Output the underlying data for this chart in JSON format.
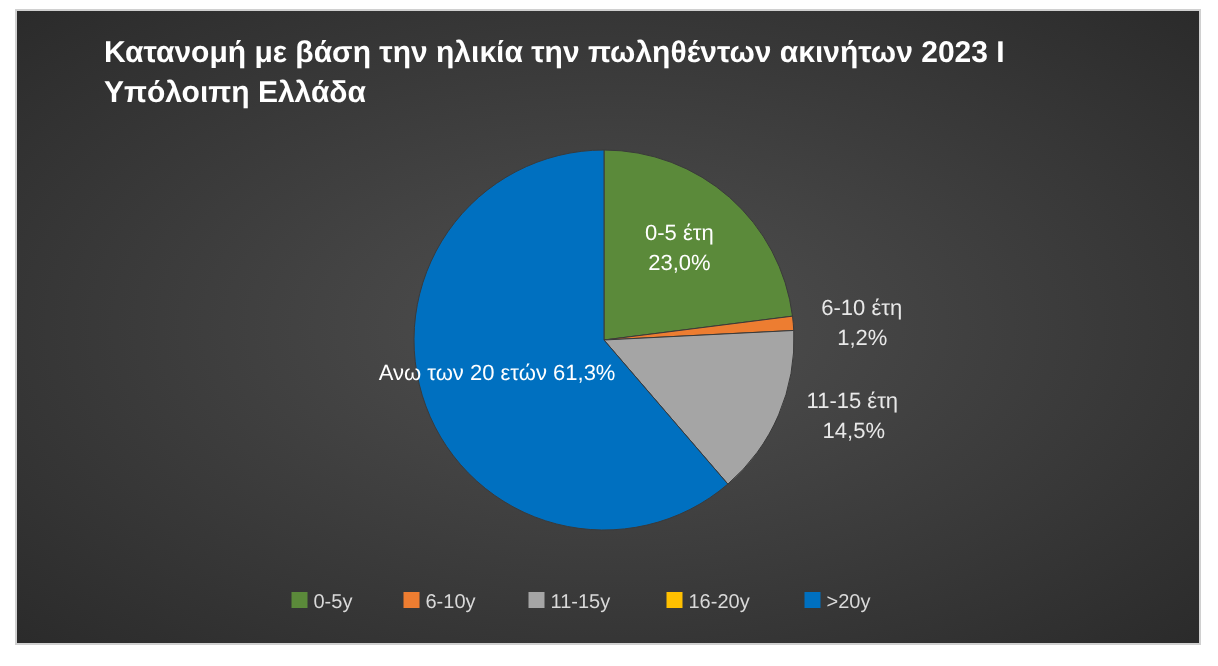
{
  "chart_data": {
    "type": "pie",
    "title": "Κατανομή με βάση την ηλικία την πωληθέντων ακινήτων 2023 Ι Υπόλοιπη Ελλάδα",
    "categories": [
      "0-5y",
      "6-10y",
      "11-15y",
      "16-20y",
      ">20y"
    ],
    "values": [
      23.0,
      1.2,
      14.5,
      0,
      61.3
    ],
    "colors": [
      "#5b8a3a",
      "#ed7d31",
      "#a5a5a5",
      "#ffc000",
      "#0070c0"
    ],
    "value_labels": [
      "0-5 έτη\n23,0%",
      "6-10 έτη\n1,2%",
      "11-15 έτη\n14,5%",
      null,
      "Ανω των 20 ετών 61,3%"
    ],
    "legend": "bottom"
  }
}
